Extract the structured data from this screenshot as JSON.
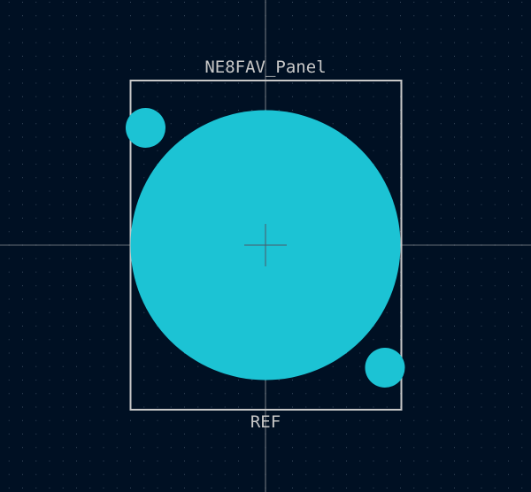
{
  "footprint": {
    "value_label": "NE8FAV_Panel",
    "reference_label": "REF"
  },
  "colors": {
    "background": "#001023",
    "grid_dot": "#3a4a5e",
    "axis_line": "#c8c8c8",
    "outline": "#c8c8c8",
    "label_text": "#c8c8c8",
    "pad": "#1cc3d4",
    "crosshair": "#4b5a68"
  }
}
